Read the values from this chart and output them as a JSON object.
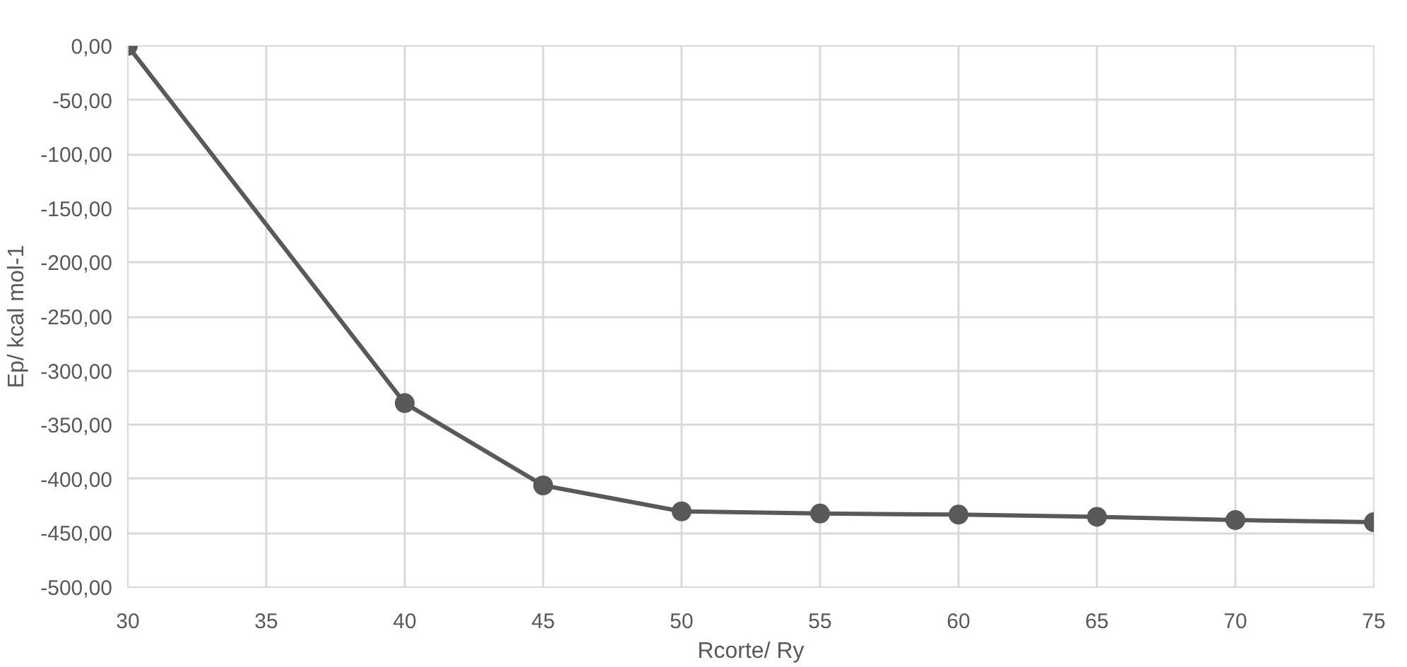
{
  "chart_data": {
    "type": "line",
    "xlabel": "Rcorte/ Ry",
    "ylabel": "Ep/ kcal mol-1",
    "x": [
      30,
      40,
      45,
      50,
      55,
      60,
      65,
      70,
      75
    ],
    "series": [
      {
        "color": "#595959",
        "values": [
          0,
          -330,
          -406,
          -430,
          -432,
          -433,
          -435,
          -438,
          -440
        ]
      }
    ],
    "xlim": [
      30,
      75
    ],
    "xticks": [
      30,
      35,
      40,
      45,
      50,
      55,
      60,
      65,
      70,
      75
    ],
    "ylim": [
      -500,
      0
    ],
    "yticks": [
      {
        "value": 0,
        "label": "0,00"
      },
      {
        "value": -50,
        "label": "-50,00"
      },
      {
        "value": -100,
        "label": "-100,00"
      },
      {
        "value": -150,
        "label": "-150,00"
      },
      {
        "value": -200,
        "label": "-200,00"
      },
      {
        "value": -250,
        "label": "-250,00"
      },
      {
        "value": -300,
        "label": "-300,00"
      },
      {
        "value": -350,
        "label": "-350,00"
      },
      {
        "value": -400,
        "label": "-400,00"
      },
      {
        "value": -450,
        "label": "-450,00"
      },
      {
        "value": -500,
        "label": "-500,00"
      }
    ],
    "grid": true,
    "marker": "circle",
    "line_style": "solid"
  }
}
